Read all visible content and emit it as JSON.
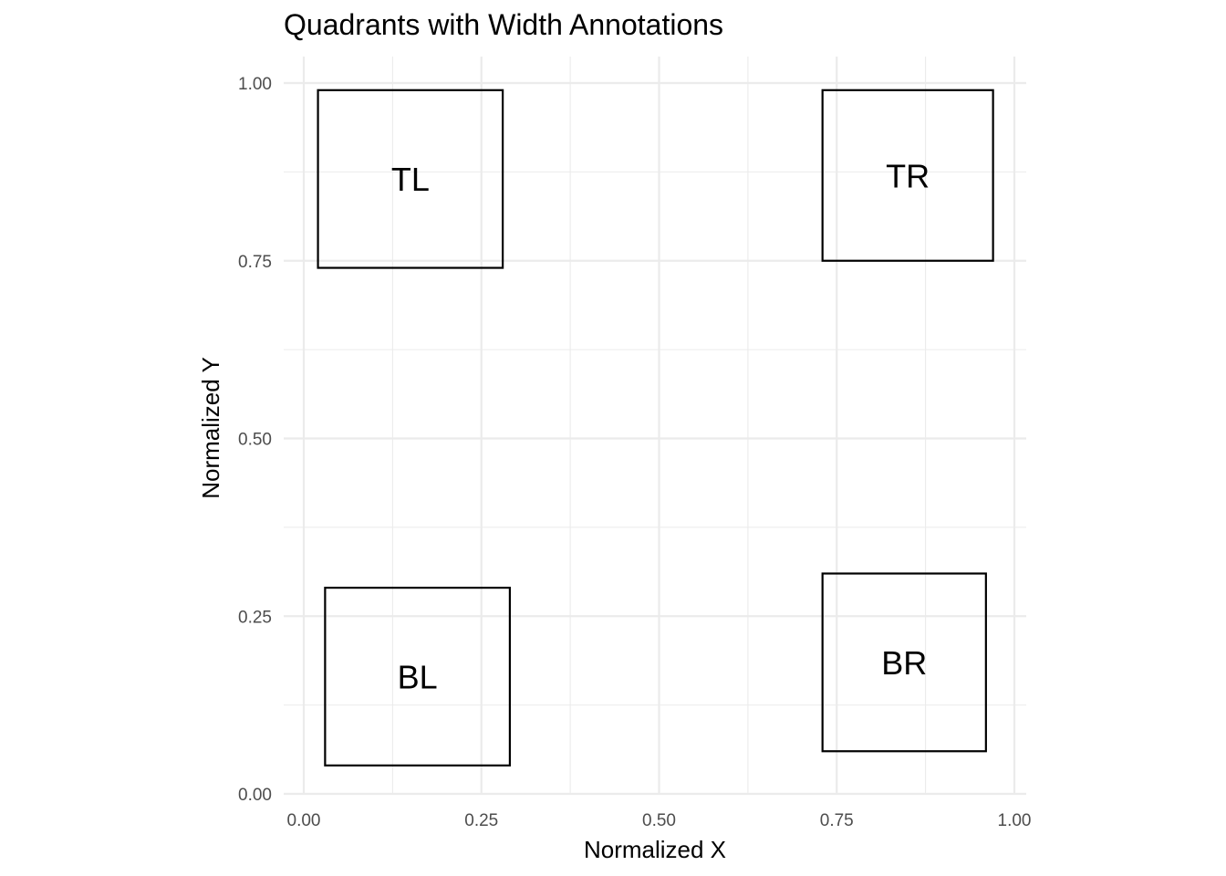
{
  "chart_data": {
    "type": "scatter",
    "title": "Quadrants with Width Annotations",
    "xlabel": "Normalized X",
    "ylabel": "Normalized Y",
    "xlim": [
      0.0,
      1.0
    ],
    "ylim": [
      0.0,
      1.0
    ],
    "xticks": [
      "0.00",
      "0.25",
      "0.50",
      "0.75",
      "1.00"
    ],
    "yticks": [
      "0.00",
      "0.25",
      "0.50",
      "0.75",
      "1.00"
    ],
    "grid": true,
    "boxes": [
      {
        "label": "TL",
        "xmin": 0.02,
        "xmax": 0.28,
        "ymin": 0.74,
        "ymax": 0.99
      },
      {
        "label": "TR",
        "xmin": 0.73,
        "xmax": 0.97,
        "ymin": 0.75,
        "ymax": 0.99
      },
      {
        "label": "BL",
        "xmin": 0.03,
        "xmax": 0.29,
        "ymin": 0.04,
        "ymax": 0.29
      },
      {
        "label": "BR",
        "xmin": 0.73,
        "xmax": 0.96,
        "ymin": 0.06,
        "ymax": 0.31
      }
    ]
  }
}
